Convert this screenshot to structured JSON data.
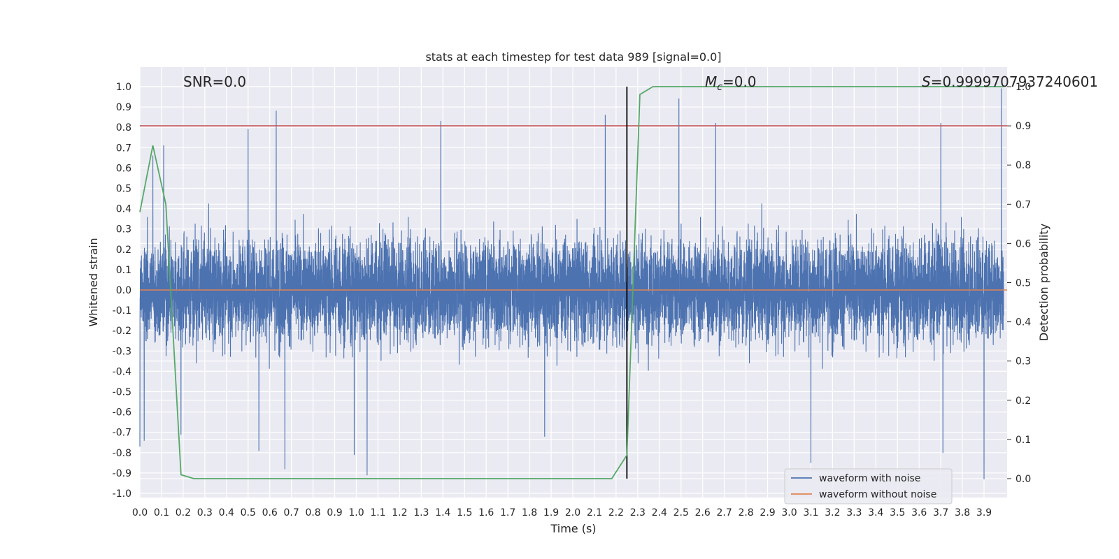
{
  "chart_data": {
    "type": "line",
    "title": "stats at each timestep for test data 989 [signal=0.0]",
    "xlabel": "Time (s)",
    "ylabel": "Whitened strain",
    "y2label": "Detection probability",
    "xlim": [
      0.0,
      3.99
    ],
    "ylim": [
      -1.0,
      1.0
    ],
    "y2lim": [
      0.0,
      1.0
    ],
    "xticks": [
      "0.0",
      "0.1",
      "0.2",
      "0.3",
      "0.4",
      "0.5",
      "0.6",
      "0.7",
      "0.8",
      "0.9",
      "1.0",
      "1.1",
      "1.2",
      "1.3",
      "1.4",
      "1.5",
      "1.6",
      "1.7",
      "1.8",
      "1.9",
      "2.0",
      "2.1",
      "2.2",
      "2.3",
      "2.4",
      "2.5",
      "2.6",
      "2.7",
      "2.8",
      "2.9",
      "3.0",
      "3.1",
      "3.2",
      "3.3",
      "3.4",
      "3.5",
      "3.6",
      "3.7",
      "3.8",
      "3.9"
    ],
    "yticks": [
      "1.0",
      "0.9",
      "0.8",
      "0.7",
      "0.6",
      "0.5",
      "0.4",
      "0.3",
      "0.2",
      "0.1",
      "0.0",
      "-0.1",
      "-0.2",
      "-0.3",
      "-0.4",
      "-0.5",
      "-0.6",
      "-0.7",
      "-0.8",
      "-0.9",
      "-1.0"
    ],
    "y2ticks": [
      "1.0",
      "0.9",
      "0.8",
      "0.7",
      "0.6",
      "0.5",
      "0.4",
      "0.3",
      "0.2",
      "0.1",
      "0.0"
    ],
    "annotations": {
      "snr": "SNR=0.0",
      "mc_symbol": "M",
      "mc_sub": "c",
      "mc_value": "=0.0",
      "s_symbol": "S",
      "s_value": "=0.9999707937240601"
    },
    "threshold_y2": 0.9,
    "vline_x": 2.25,
    "grid": true,
    "legend_position": "lower right",
    "legend": [
      {
        "label": "waveform with noise",
        "color": "#4c72b0"
      },
      {
        "label": "waveform without noise",
        "color": "#dd8452"
      }
    ],
    "series": [
      {
        "name": "waveform with noise",
        "color": "#4c72b0",
        "axis": "left",
        "sample_rate_hz": 2048,
        "envelope_peaks": [
          {
            "x": 0.0,
            "y": -0.77
          },
          {
            "x": 0.02,
            "y": -0.74
          },
          {
            "x": 0.06,
            "y": 0.66
          },
          {
            "x": 0.11,
            "y": 0.71
          },
          {
            "x": 0.19,
            "y": -0.71
          },
          {
            "x": 0.5,
            "y": 0.79
          },
          {
            "x": 0.55,
            "y": -0.79
          },
          {
            "x": 0.63,
            "y": 0.88
          },
          {
            "x": 0.67,
            "y": -0.88
          },
          {
            "x": 0.99,
            "y": -0.81
          },
          {
            "x": 1.05,
            "y": -0.91
          },
          {
            "x": 1.39,
            "y": 0.83
          },
          {
            "x": 1.87,
            "y": -0.72
          },
          {
            "x": 2.15,
            "y": 0.86
          },
          {
            "x": 2.25,
            "y": 0.73
          },
          {
            "x": 2.49,
            "y": 0.94
          },
          {
            "x": 2.66,
            "y": 0.82
          },
          {
            "x": 3.1,
            "y": -0.85
          },
          {
            "x": 3.7,
            "y": 0.82
          },
          {
            "x": 3.71,
            "y": -0.8
          },
          {
            "x": 3.9,
            "y": -0.93
          },
          {
            "x": 3.98,
            "y": 0.99
          }
        ]
      },
      {
        "name": "waveform without noise",
        "color": "#dd8452",
        "axis": "left",
        "x": [
          0.0,
          3.99
        ],
        "y": [
          0.0,
          0.0
        ]
      },
      {
        "color": "#55a868",
        "axis": "right",
        "x": [
          0.0,
          0.06,
          0.12,
          0.19,
          0.25,
          2.18,
          2.25,
          2.31,
          2.37,
          3.99
        ],
        "y": [
          0.68,
          0.85,
          0.7,
          0.01,
          0.0,
          0.0,
          0.06,
          0.98,
          1.0,
          1.0
        ]
      }
    ],
    "colors": {
      "plot_background": "#eaeaf2",
      "grid": "#ffffff",
      "threshold_line": "#c44e52",
      "vline": "#000000"
    }
  }
}
